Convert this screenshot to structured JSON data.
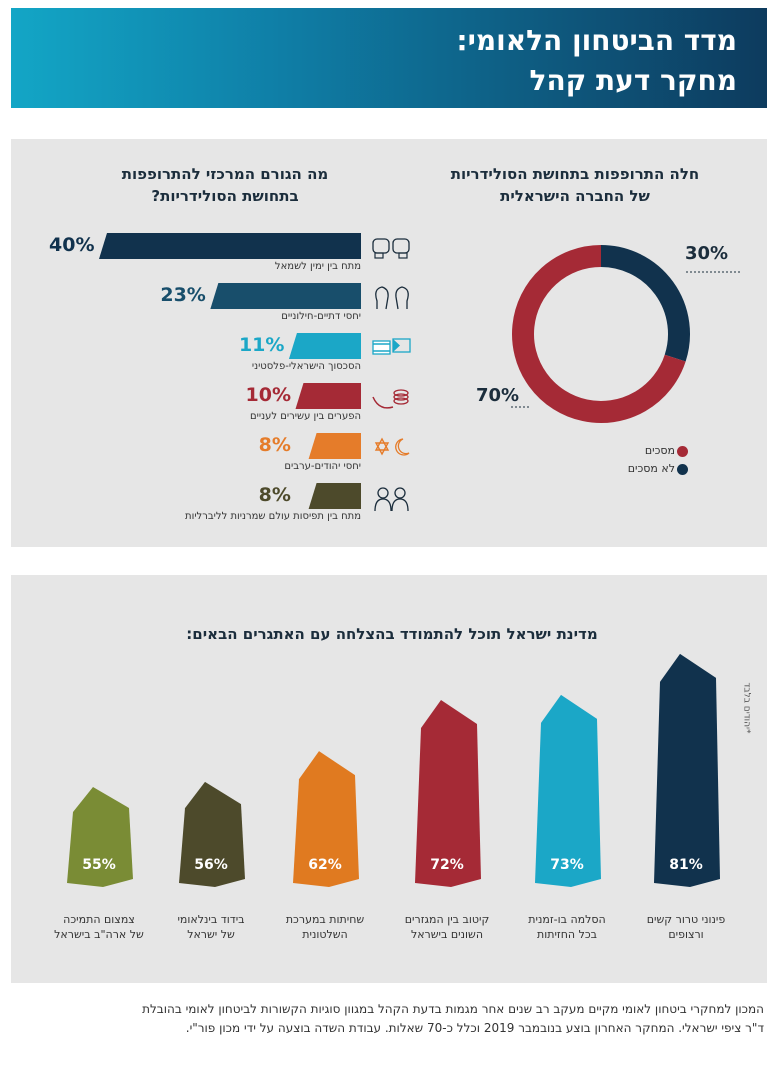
{
  "header": {
    "line1": "מדד הביטחון הלאומי:",
    "line2": "מחקר דעת קהל"
  },
  "donut": {
    "title_line1": "חלה התרופפות בתחושת הסולידריות",
    "title_line2": "של החברה הישראלית",
    "agree_pct": "70%",
    "disagree_pct": "30%",
    "legend": [
      {
        "label": "מסכים",
        "color": "#a52a36"
      },
      {
        "label": "לא מסכים",
        "color": "#11324d"
      }
    ]
  },
  "bars": {
    "title_line1": "מה הגורם המרכזי להתרופפות",
    "title_line2": "בתחושת הסולידריות?",
    "items": [
      {
        "label": "מתח בין ימין לשמאל",
        "display": "40%",
        "color": "#11324d",
        "icon": "boxing-gloves-icon"
      },
      {
        "label": "יחסי דתיים-חילוניים",
        "display": "23%",
        "color": "#184e6b",
        "icon": "faces-icon"
      },
      {
        "label": "הסכסוך הישראלי-פלסטיני",
        "display": "11%",
        "color": "#1ba7c7",
        "icon": "flags-icon"
      },
      {
        "label": "הפערים בין עשירים לעניים",
        "display": "10%",
        "color": "#a52a36",
        "icon": "coins-hand-icon"
      },
      {
        "label": "יחסי יהודים-ערבים",
        "display": "8%",
        "color": "#e57c2a",
        "icon": "star-crescent-icon"
      },
      {
        "label": "מתח בין תפיסות עולם שמרניות לליברליות",
        "display": "8%",
        "color": "#4d4a2b",
        "icon": "people-icon"
      }
    ]
  },
  "columns": {
    "title": "מדינת ישראל תוכל להתמודד בהצלחה עם האתגרים הבאים:",
    "note": "*יהודים בלבד",
    "items": [
      {
        "label_line1": "פינוני טרור קשים",
        "label_line2": "ורצופים",
        "display": "81%",
        "color": "#11324d"
      },
      {
        "label_line1": "הסלמה בו-זמנית",
        "label_line2": "בכל החזיתות",
        "display": "73%",
        "color": "#1ba7c7"
      },
      {
        "label_line1": "קיטוב בין המגזרים",
        "label_line2": "השונים בישראל",
        "display": "72%",
        "color": "#a52a36"
      },
      {
        "label_line1": "שחיתות במערכת",
        "label_line2": "השלטונית",
        "display": "62%",
        "color": "#e07a20"
      },
      {
        "label_line1": "בידוד בינלאומי",
        "label_line2": "של ישראל",
        "display": "56%",
        "color": "#4d4a2b"
      },
      {
        "label_line1": "צמצום התמיכה",
        "label_line2": "של ארה\"ב בישראל",
        "display": "55%",
        "color": "#7a8c35"
      }
    ]
  },
  "footer": {
    "line1": "המכון למחקרי ביטחון לאומי מקיים מעקב רב שנים אחר מגמות בדעת הקהל במגוון סוגיות הקשורות לביטחון לאומי בהובלת",
    "line2": "ד\"ר ציפי ישראלי. המחקר האחרון בוצע בנובמבר 2019 וכלל כ-70 שאלות. עבודת השדה בוצעה על ידי מכון פור\"י."
  },
  "chart_data": [
    {
      "type": "pie",
      "title": "חלה התרופפות בתחושת הסולידריות של החברה הישראלית",
      "categories": [
        "מסכים",
        "לא מסכים"
      ],
      "values": [
        70,
        30
      ],
      "legend": "bottom-right"
    },
    {
      "type": "bar",
      "title": "מה הגורם המרכזי להתרופפות בתחושת הסולידריות?",
      "categories": [
        "מתח בין ימין לשמאל",
        "יחסי דתיים-חילוניים",
        "הסכסוך הישראלי-פלסטיני",
        "הפערים בין עשירים לעניים",
        "יחסי יהודים-ערבים",
        "מתח בין תפיסות עולם שמרניות לליברליות"
      ],
      "values": [
        40,
        23,
        11,
        10,
        8,
        8
      ]
    },
    {
      "type": "bar",
      "title": "מדינת ישראל תוכל להתמודד בהצלחה עם האתגרים הבאים:",
      "categories": [
        "פינוני טרור קשים ורצופים",
        "הסלמה בו-זמנית בכל החזיתות",
        "קיטוב בין המגזרים השונים בישראל",
        "שחיתות במערכת השלטונית",
        "בידוד בינלאומי של ישראל",
        "צמצום התמיכה של ארה\"ב בישראל"
      ],
      "values": [
        81,
        73,
        72,
        62,
        56,
        55
      ]
    }
  ]
}
